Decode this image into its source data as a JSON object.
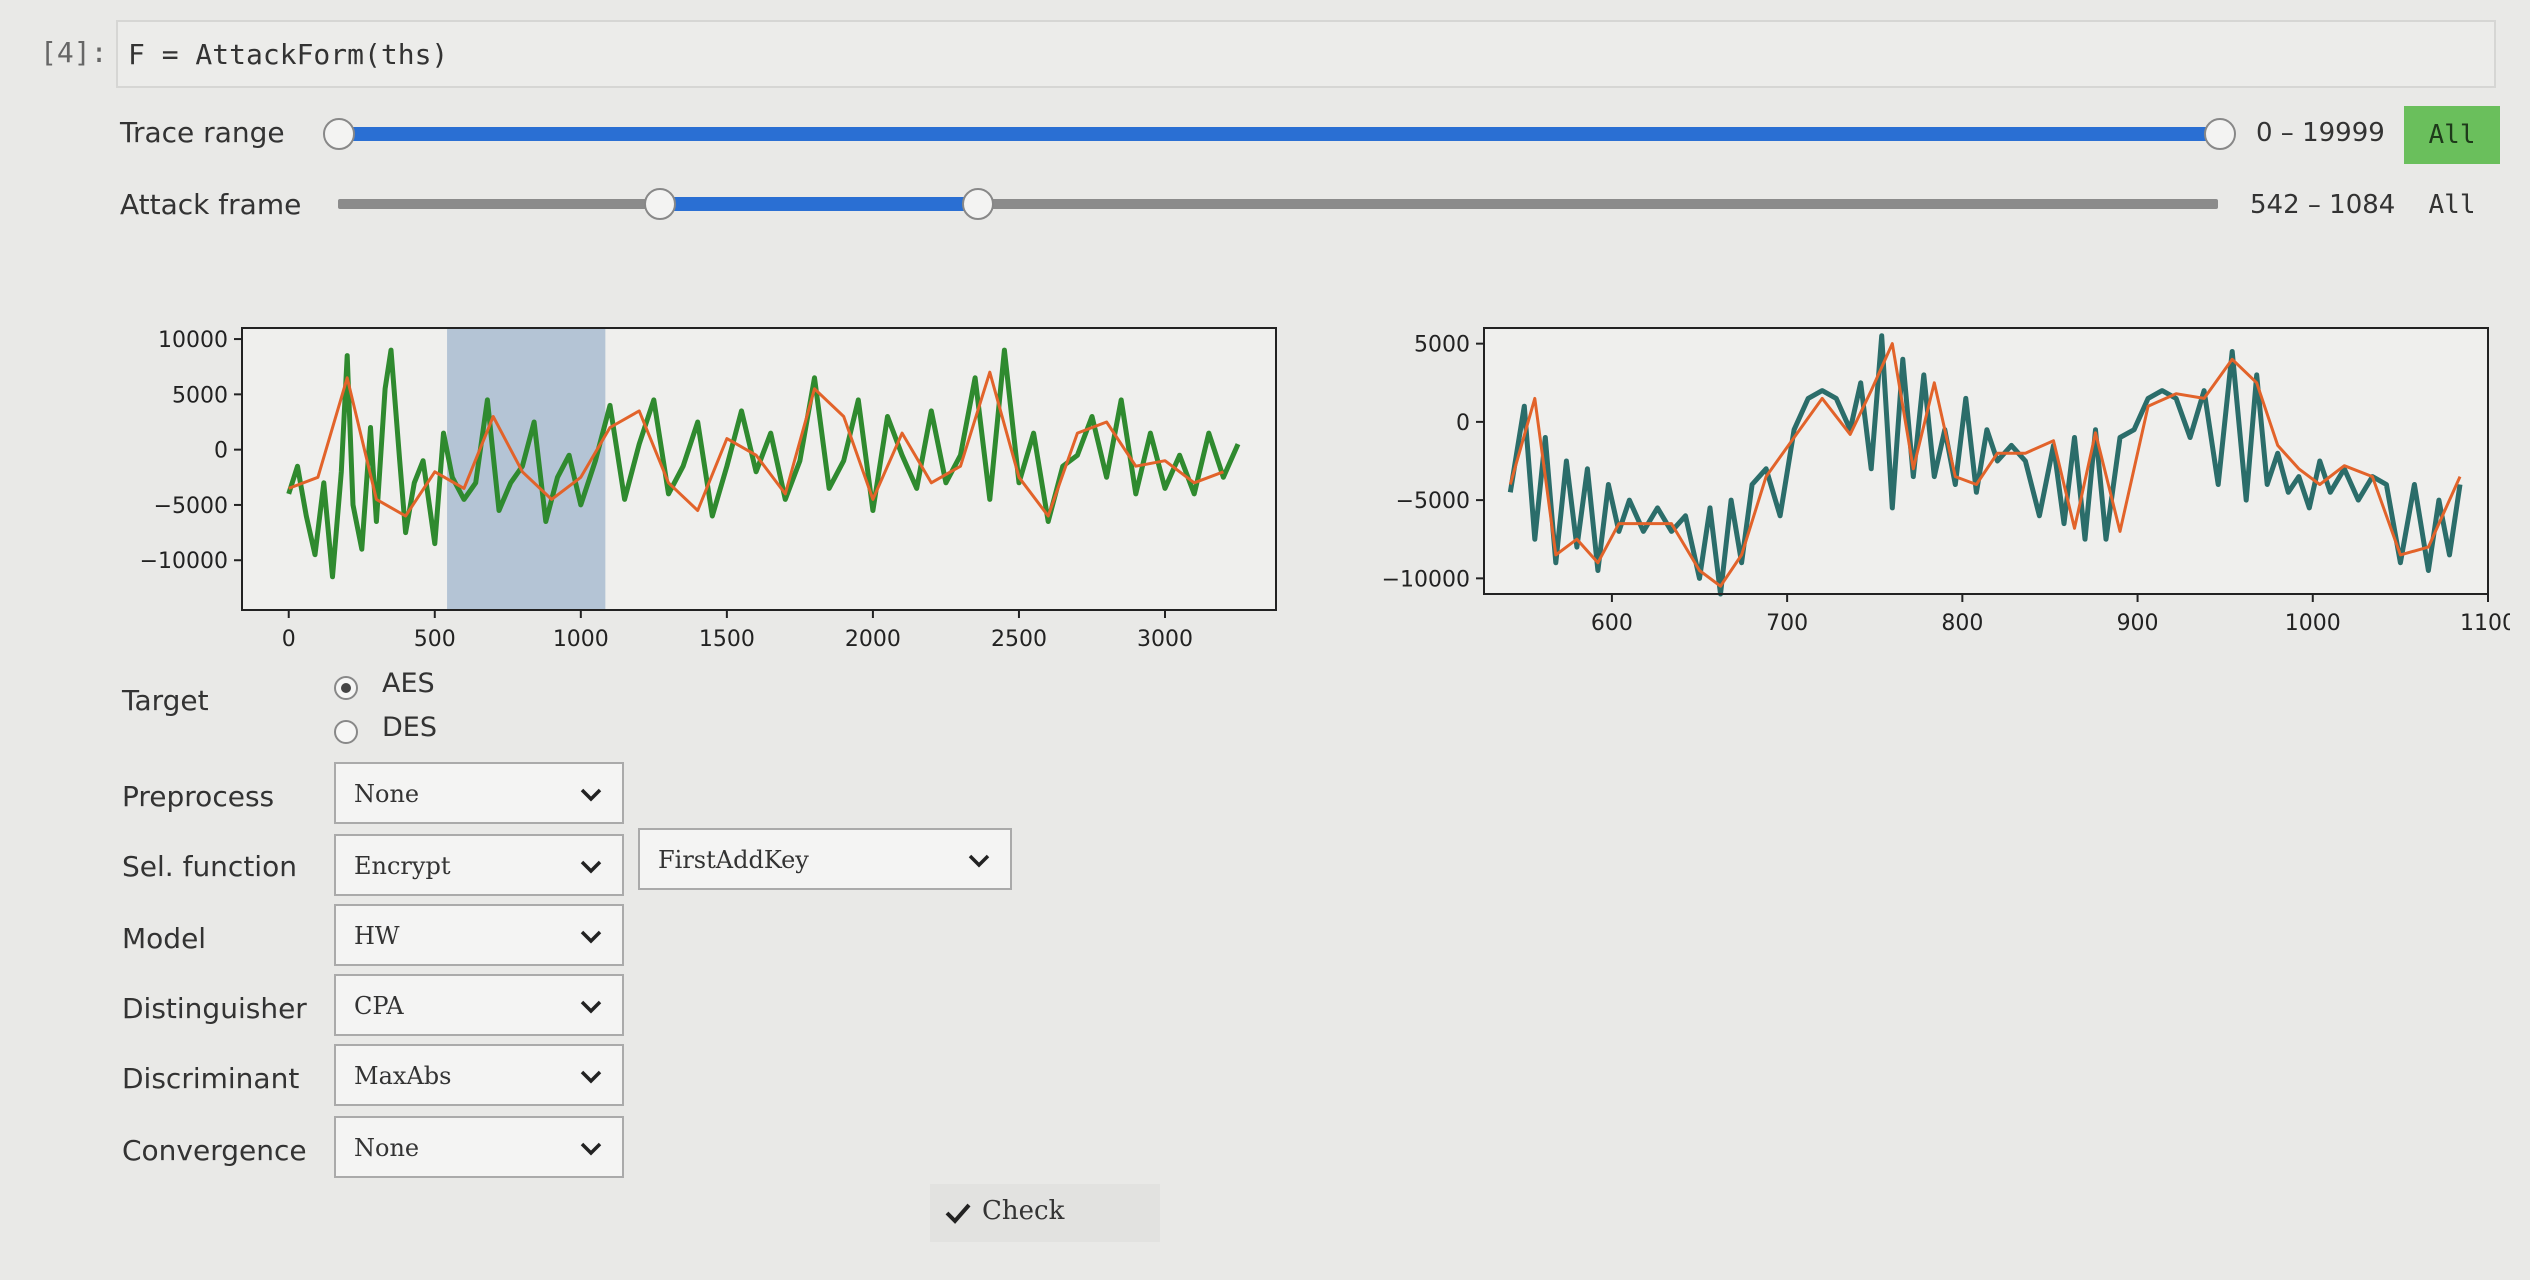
{
  "cell": {
    "prompt": "[4]:",
    "code": "F = AttackForm(ths)"
  },
  "trace_range": {
    "label": "Trace range",
    "value": "0 – 19999",
    "all_label": "All",
    "min": 0,
    "max": 19999,
    "low": 0,
    "high": 19999
  },
  "attack_frame": {
    "label": "Attack frame",
    "value": "542 – 1084",
    "all_label": "All",
    "low": 542,
    "high": 1084,
    "max": 3250
  },
  "chart_data": [
    {
      "type": "line",
      "xlim": [
        -160,
        3380
      ],
      "ylim": [
        -14500,
        11000
      ],
      "xticks": [
        "0",
        "500",
        "1000",
        "1500",
        "2000",
        "2500",
        "3000"
      ],
      "xtick_values": [
        0,
        500,
        1000,
        1500,
        2000,
        2500,
        3000
      ],
      "yticks": [
        "10000",
        "5000",
        "0",
        "−5000",
        "−10000"
      ],
      "ytick_values": [
        10000,
        5000,
        0,
        -5000,
        -10000
      ],
      "highlight_range": [
        542,
        1084
      ],
      "series": [
        {
          "color": "#2f8a2f",
          "x": [
            0,
            30,
            60,
            90,
            120,
            150,
            180,
            200,
            220,
            250,
            280,
            300,
            330,
            350,
            380,
            400,
            430,
            460,
            500,
            530,
            560,
            600,
            640,
            680,
            720,
            760,
            800,
            840,
            880,
            920,
            960,
            1000,
            1050,
            1100,
            1150,
            1200,
            1250,
            1300,
            1350,
            1400,
            1450,
            1500,
            1550,
            1600,
            1650,
            1700,
            1750,
            1800,
            1850,
            1900,
            1950,
            2000,
            2050,
            2100,
            2150,
            2200,
            2250,
            2300,
            2350,
            2400,
            2450,
            2500,
            2550,
            2600,
            2650,
            2700,
            2750,
            2800,
            2850,
            2900,
            2950,
            3000,
            3050,
            3100,
            3150,
            3200,
            3250
          ],
          "values": [
            -4000,
            -1500,
            -6000,
            -9500,
            -3000,
            -11500,
            -2000,
            8500,
            -5000,
            -9000,
            2000,
            -6500,
            5500,
            9000,
            -1000,
            -7500,
            -3000,
            -1000,
            -8500,
            1500,
            -2500,
            -4500,
            -3000,
            4500,
            -5500,
            -3000,
            -1500,
            2500,
            -6500,
            -2500,
            -500,
            -5000,
            -1000,
            4000,
            -4500,
            500,
            4500,
            -4000,
            -1500,
            2500,
            -6000,
            -1500,
            3500,
            -2000,
            1500,
            -4500,
            -1000,
            6500,
            -3500,
            -1000,
            4500,
            -5500,
            3000,
            -500,
            -3500,
            3500,
            -3000,
            -500,
            6500,
            -4500,
            9000,
            -3000,
            1500,
            -6500,
            -1500,
            -500,
            3000,
            -2500,
            4500,
            -4000,
            1500,
            -3500,
            -500,
            -4000,
            1500,
            -2500,
            500
          ]
        },
        {
          "color": "#e2632a",
          "x": [
            0,
            100,
            200,
            300,
            400,
            500,
            600,
            700,
            800,
            900,
            1000,
            1100,
            1200,
            1300,
            1400,
            1500,
            1600,
            1700,
            1800,
            1900,
            2000,
            2100,
            2200,
            2300,
            2400,
            2500,
            2600,
            2700,
            2800,
            2900,
            3000,
            3100,
            3200
          ],
          "values": [
            -3500,
            -2500,
            6500,
            -4500,
            -6000,
            -2000,
            -3500,
            3000,
            -2000,
            -4500,
            -2500,
            2000,
            3500,
            -3000,
            -5500,
            1000,
            -500,
            -4000,
            5500,
            3000,
            -4500,
            1500,
            -3000,
            -1500,
            7000,
            -2500,
            -6000,
            1500,
            2500,
            -1500,
            -1000,
            -3000,
            -2000
          ]
        }
      ]
    },
    {
      "type": "line",
      "xlim": [
        527,
        1100
      ],
      "ylim": [
        -11000,
        6000
      ],
      "xticks": [
        "600",
        "700",
        "800",
        "900",
        "1000",
        "1100"
      ],
      "xtick_values": [
        600,
        700,
        800,
        900,
        1000,
        1100
      ],
      "yticks": [
        "5000",
        "0",
        "−5000",
        "−10000"
      ],
      "ytick_values": [
        5000,
        0,
        -5000,
        -10000
      ],
      "series": [
        {
          "color": "#2b6d6a",
          "x": [
            542,
            550,
            556,
            562,
            568,
            574,
            580,
            586,
            592,
            598,
            604,
            610,
            618,
            626,
            634,
            642,
            650,
            656,
            662,
            668,
            674,
            680,
            688,
            696,
            704,
            712,
            720,
            728,
            736,
            742,
            748,
            754,
            760,
            766,
            772,
            778,
            784,
            790,
            796,
            802,
            808,
            814,
            820,
            828,
            836,
            844,
            852,
            858,
            864,
            870,
            876,
            882,
            890,
            898,
            906,
            914,
            922,
            930,
            938,
            946,
            954,
            962,
            968,
            974,
            980,
            986,
            992,
            998,
            1004,
            1010,
            1018,
            1026,
            1034,
            1042,
            1050,
            1058,
            1066,
            1072,
            1078,
            1084
          ],
          "values": [
            -4500,
            1000,
            -7500,
            -1000,
            -9000,
            -2500,
            -8000,
            -3000,
            -9500,
            -4000,
            -7000,
            -5000,
            -7000,
            -5500,
            -7000,
            -6000,
            -10000,
            -5500,
            -11000,
            -5000,
            -9000,
            -4000,
            -3000,
            -6000,
            -500,
            1500,
            2000,
            1500,
            -500,
            2500,
            -3000,
            5500,
            -5500,
            4000,
            -3500,
            3000,
            -3500,
            -500,
            -4000,
            1500,
            -4500,
            -500,
            -2500,
            -1500,
            -2500,
            -6000,
            -1500,
            -6500,
            -1000,
            -7500,
            -500,
            -7500,
            -1000,
            -500,
            1500,
            2000,
            1500,
            -1000,
            2000,
            -4000,
            4500,
            -5000,
            3000,
            -4000,
            -2000,
            -4500,
            -3500,
            -5500,
            -2500,
            -4500,
            -3000,
            -5000,
            -3500,
            -4000,
            -9000,
            -4000,
            -9500,
            -5000,
            -8500,
            -4000
          ]
        },
        {
          "color": "#e2632a",
          "x": [
            542,
            556,
            568,
            580,
            592,
            604,
            618,
            634,
            650,
            662,
            674,
            688,
            704,
            720,
            736,
            748,
            760,
            772,
            784,
            796,
            808,
            820,
            836,
            852,
            864,
            876,
            890,
            906,
            922,
            938,
            954,
            968,
            980,
            992,
            1004,
            1018,
            1034,
            1050,
            1066,
            1084
          ],
          "values": [
            -4000,
            1500,
            -8500,
            -7500,
            -9000,
            -6500,
            -6500,
            -6500,
            -9500,
            -10500,
            -8500,
            -3500,
            -1000,
            1500,
            -800,
            2000,
            5000,
            -3000,
            2500,
            -3500,
            -4000,
            -2000,
            -2000,
            -1200,
            -6800,
            -700,
            -7000,
            1000,
            1800,
            1500,
            4000,
            2500,
            -1500,
            -3000,
            -4000,
            -2800,
            -3500,
            -8500,
            -8000,
            -3500
          ]
        }
      ]
    }
  ],
  "form": {
    "target": {
      "label": "Target",
      "options": [
        "AES",
        "DES"
      ],
      "selected": "AES"
    },
    "preprocess": {
      "label": "Preprocess",
      "value": "None"
    },
    "sel_function": {
      "label": "Sel. function",
      "value": "Encrypt",
      "value2": "FirstAddKey"
    },
    "model": {
      "label": "Model",
      "value": "HW"
    },
    "distinguisher": {
      "label": "Distinguisher",
      "value": "CPA"
    },
    "discriminant": {
      "label": "Discriminant",
      "value": "MaxAbs"
    },
    "convergence": {
      "label": "Convergence",
      "value": "None"
    },
    "check_label": "Check"
  },
  "icons": {
    "chevron": "chevron-down-icon",
    "check": "check-icon"
  }
}
